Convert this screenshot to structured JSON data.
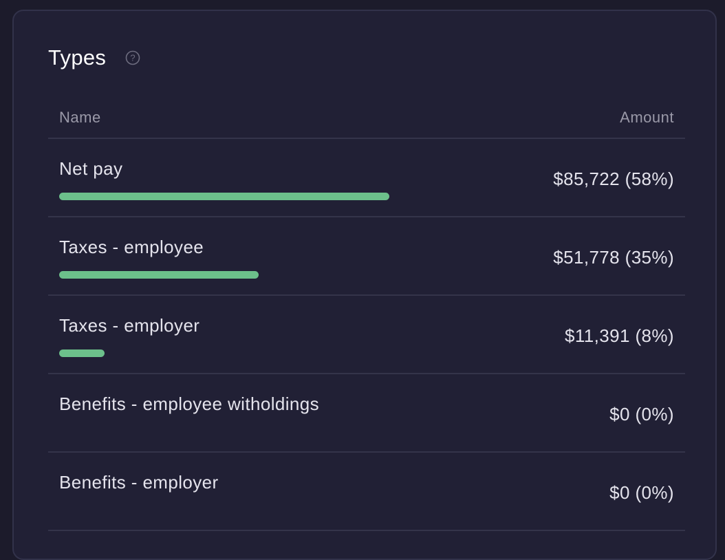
{
  "card": {
    "title": "Types",
    "help_icon": "question-circle-icon"
  },
  "table": {
    "columns": [
      "Name",
      "Amount"
    ],
    "rows": [
      {
        "name": "Net pay",
        "amount": "$85,722 (58%)",
        "bar_fraction": 0.58
      },
      {
        "name": "Taxes - employee",
        "amount": "$51,778 (35%)",
        "bar_fraction": 0.35
      },
      {
        "name": "Taxes - employer",
        "amount": "$11,391 (8%)",
        "bar_fraction": 0.08
      },
      {
        "name": "Benefits - employee witholdings",
        "amount": "$0 (0%)",
        "bar_fraction": 0
      },
      {
        "name": "Benefits - employer",
        "amount": "$0 (0%)",
        "bar_fraction": 0
      }
    ]
  },
  "colors": {
    "bar": "#6cc08b",
    "background": "#212035"
  }
}
